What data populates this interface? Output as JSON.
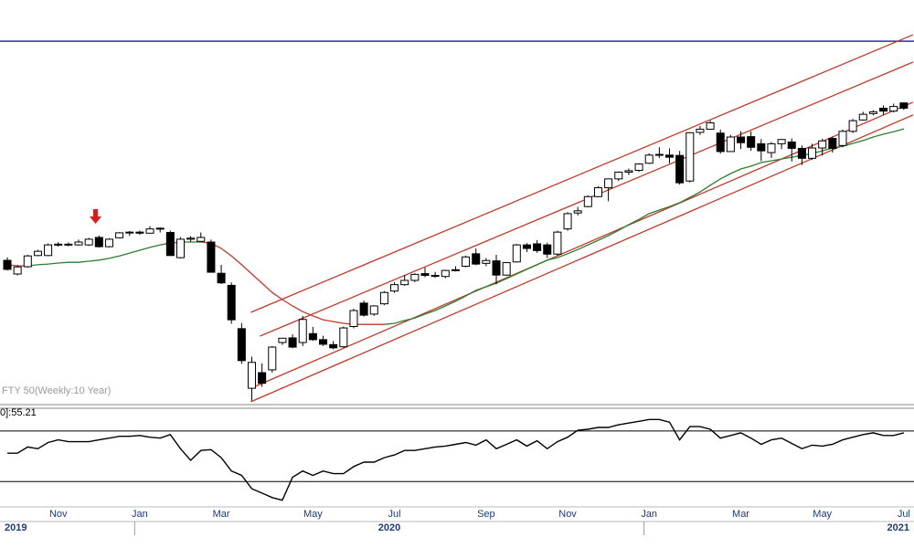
{
  "chart_data": {
    "type": "candlestick",
    "title": "FTY 50(Weekly:10 Year)",
    "categories": [
      null,
      null,
      null,
      null,
      null,
      "Nov",
      null,
      null,
      null,
      null,
      null,
      null,
      null,
      "Jan",
      null,
      null,
      null,
      null,
      null,
      null,
      null,
      "Mar",
      null,
      null,
      null,
      null,
      null,
      null,
      null,
      null,
      "May",
      null,
      null,
      null,
      null,
      null,
      null,
      null,
      "Jul",
      null,
      null,
      null,
      null,
      null,
      null,
      null,
      null,
      "Sep",
      null,
      null,
      null,
      null,
      null,
      null,
      null,
      "Nov",
      null,
      null,
      null,
      null,
      null,
      null,
      null,
      "Jan",
      null,
      null,
      null,
      null,
      null,
      null,
      null,
      null,
      "Mar",
      null,
      null,
      null,
      null,
      null,
      null,
      null,
      "May",
      null,
      null,
      null,
      null,
      null,
      null,
      null,
      "Jul"
    ],
    "year_ticks": [
      {
        "value": 0,
        "label": "2019"
      },
      {
        "value": 13,
        "label": "2020"
      },
      {
        "value": 63,
        "label": "2021"
      }
    ],
    "open": [
      11465,
      11080,
      11285,
      11600,
      11600,
      11900,
      11920,
      11900,
      11900,
      12110,
      11850,
      12100,
      12240,
      12260,
      12230,
      12350,
      12250,
      11540,
      12060,
      12000,
      11980,
      11100,
      10760,
      9540,
      7860,
      8300,
      8380,
      9150,
      9280,
      9150,
      9400,
      9230,
      9090,
      9030,
      9600,
      10260,
      9950,
      10240,
      10600,
      10780,
      10900,
      11090,
      11040,
      11010,
      11180,
      11300,
      11650,
      11380,
      11450,
      11050,
      11420,
      11900,
      11930,
      11900,
      11640,
      12350,
      12800,
      12980,
      13260,
      13510,
      13760,
      13950,
      14000,
      14200,
      14450,
      14430,
      14420,
      13700,
      15070,
      15160,
      15050,
      14530,
      14940,
      14950,
      14750,
      14500,
      14750,
      14800,
      14620,
      14340,
      14630,
      14900,
      14700,
      15100,
      15420,
      15600,
      15750,
      15670,
      15900
    ],
    "high": [
      11550,
      11330,
      11620,
      11760,
      11940,
      11980,
      11970,
      12050,
      12100,
      12160,
      12090,
      12260,
      12290,
      12300,
      12430,
      12390,
      12300,
      12120,
      12150,
      12250,
      12050,
      11340,
      10840,
      9700,
      8750,
      8560,
      9050,
      9280,
      9380,
      9900,
      9590,
      9340,
      9190,
      9600,
      10100,
      10330,
      10200,
      10600,
      10850,
      11050,
      11100,
      11260,
      11140,
      11200,
      11300,
      11600,
      11800,
      11530,
      11620,
      11410,
      11930,
      11950,
      12030,
      11960,
      12300,
      12820,
      12970,
      13300,
      13550,
      13770,
      13970,
      14050,
      14200,
      14480,
      14650,
      14620,
      14550,
      15080,
      15250,
      15400,
      15150,
      15000,
      15100,
      15100,
      14880,
      14800,
      14880,
      14900,
      14700,
      14750,
      14890,
      14950,
      15150,
      15450,
      15650,
      15700,
      15830,
      15880,
      15920
    ],
    "low": [
      11180,
      11040,
      11260,
      11580,
      11580,
      11850,
      11860,
      11880,
      11870,
      11830,
      11830,
      12080,
      12150,
      12180,
      12220,
      12250,
      11590,
      11520,
      11990,
      11980,
      11130,
      10800,
      9680,
      8550,
      7510,
      7900,
      8300,
      9080,
      8990,
      9050,
      9200,
      9050,
      8960,
      9000,
      9550,
      9880,
      9900,
      10200,
      10550,
      10750,
      10850,
      10990,
      10970,
      10960,
      11150,
      11270,
      11330,
      11300,
      10790,
      11030,
      11400,
      11700,
      11680,
      11530,
      11600,
      12300,
      12730,
      12960,
      13240,
      13130,
      13700,
      13870,
      13960,
      14180,
      14350,
      14200,
      13600,
      13660,
      15000,
      15150,
      14470,
      14520,
      14600,
      14550,
      14260,
      14350,
      14600,
      14250,
      14150,
      14300,
      14420,
      14500,
      14650,
      15050,
      15400,
      15550,
      15560,
      15630,
      15700
    ],
    "close": [
      11210,
      11280,
      11590,
      11720,
      11900,
      11920,
      11900,
      11980,
      12060,
      11850,
      12060,
      12240,
      12260,
      12230,
      12350,
      12370,
      11600,
      12060,
      12090,
      12110,
      11130,
      10830,
      9790,
      8640,
      8590,
      8000,
      9020,
      9270,
      9020,
      9800,
      9230,
      9100,
      9000,
      9560,
      10050,
      9920,
      10180,
      10560,
      10780,
      10900,
      11070,
      11040,
      11020,
      11180,
      11200,
      11560,
      11360,
      11460,
      11050,
      11400,
      11900,
      11800,
      11740,
      11640,
      12260,
      12780,
      12860,
      13260,
      13510,
      13760,
      13950,
      13990,
      14180,
      14430,
      14430,
      14370,
      13650,
      15060,
      15160,
      15340,
      14530,
      14940,
      14780,
      14650,
      14550,
      14750,
      14870,
      14620,
      14340,
      14630,
      14830,
      14620,
      15100,
      15400,
      15580,
      15650,
      15670,
      15800,
      15750
    ],
    "up_color": "#ffffff",
    "down_color": "#000000",
    "ylim": [
      7400,
      18800
    ],
    "moving_average": {
      "values": [
        11340,
        11310,
        11310,
        11340,
        11360,
        11390,
        11410,
        11410,
        11440,
        11470,
        11520,
        11590,
        11670,
        11750,
        11830,
        11900,
        11950,
        11980,
        11980,
        11980,
        11950,
        11800,
        11590,
        11340,
        11080,
        10820,
        10560,
        10360,
        10180,
        10020,
        9900,
        9790,
        9740,
        9690,
        9660,
        9660,
        9660,
        9660,
        9690,
        9770,
        9840,
        9950,
        10050,
        10180,
        10310,
        10460,
        10620,
        10720,
        10820,
        10950,
        11080,
        11210,
        11340,
        11470,
        11540,
        11650,
        11770,
        11900,
        12030,
        12160,
        12310,
        12470,
        12620,
        12780,
        12880,
        12980,
        13090,
        13240,
        13390,
        13580,
        13760,
        13910,
        14040,
        14120,
        14220,
        14270,
        14320,
        14370,
        14420,
        14480,
        14550,
        14630,
        14680,
        14760,
        14840,
        14940,
        15020,
        15090,
        15170
      ],
      "rising_color": "#2e7d32",
      "falling_color": "#c0392b"
    },
    "trendlines": [
      {
        "x": [
          23.9,
          88.9
        ],
        "y": [
          10000,
          17820
        ]
      },
      {
        "x": [
          24.8,
          88.9
        ],
        "y": [
          9330,
          17050
        ]
      },
      {
        "x": [
          23.9,
          88.9
        ],
        "y": [
          7860,
          15920
        ]
      },
      {
        "x": [
          23.9,
          88.9
        ],
        "y": [
          7480,
          15560
        ]
      }
    ],
    "trendline_color": "#c0392b",
    "hline": {
      "value": 17640,
      "color": "#2b2bb0"
    },
    "rsi": {
      "label": "0]:55.21",
      "values": [
        52.5,
        52.5,
        57.4,
        56.0,
        60.9,
        63.0,
        61.6,
        61.6,
        61.6,
        63.0,
        64.4,
        65.8,
        65.8,
        66.5,
        65.1,
        64.4,
        67.2,
        56.0,
        46.8,
        54.6,
        55.3,
        48.9,
        38.4,
        34.9,
        24.4,
        20.9,
        17.4,
        15.3,
        33.5,
        38.4,
        34.9,
        38.4,
        36.3,
        36.3,
        41.9,
        45.4,
        45.4,
        48.9,
        51.1,
        54.6,
        54.6,
        56.0,
        57.4,
        58.1,
        59.5,
        60.9,
        58.8,
        63.0,
        56.0,
        59.5,
        63.0,
        58.1,
        62.3,
        56.0,
        61.6,
        65.1,
        70.7,
        71.4,
        72.8,
        72.8,
        74.9,
        76.3,
        77.7,
        79.1,
        79.1,
        77.0,
        63.0,
        73.5,
        73.5,
        71.4,
        64.4,
        66.5,
        68.6,
        64.4,
        59.5,
        63.0,
        64.4,
        60.2,
        56.0,
        58.8,
        58.1,
        59.5,
        63.0,
        65.1,
        67.2,
        68.6,
        66.5,
        66.5,
        68.6
      ],
      "ylim": [
        10,
        88
      ],
      "levels": [
        30,
        70
      ],
      "color": "#000000"
    }
  }
}
